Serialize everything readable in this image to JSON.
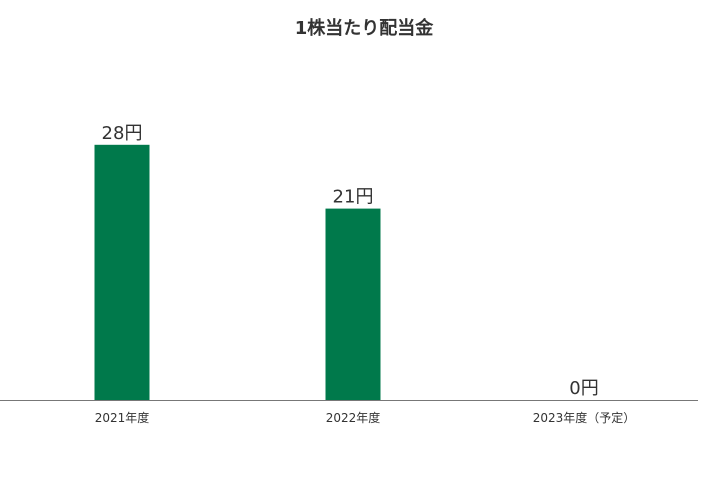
{
  "chart_data": {
    "type": "bar",
    "title": "1株当たり配当金",
    "categories": [
      "2021年度",
      "2022年度",
      "2023年度（予定）"
    ],
    "values": [
      28,
      21,
      0
    ],
    "data_labels": [
      "28円",
      "21円",
      "0円"
    ],
    "unit": "円",
    "ylim": [
      0,
      35
    ],
    "grid": false,
    "bar_color": "#00794b",
    "xlabel": "",
    "ylabel": ""
  }
}
